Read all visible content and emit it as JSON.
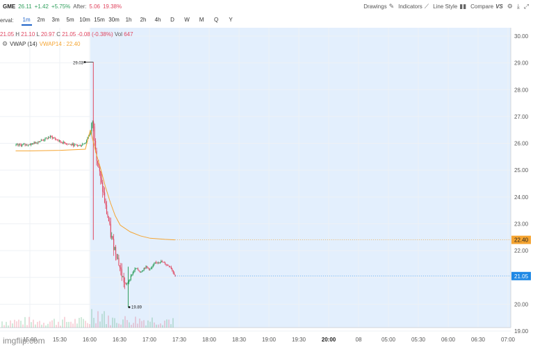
{
  "header": {
    "symbol": "GME",
    "price": "26.11",
    "change": "+1.42",
    "change_pct": "+5.75%",
    "after_label": "After:",
    "after_change": "5.06",
    "after_pct": "19.38%"
  },
  "toolbar": {
    "drawings": "Drawings",
    "indicators": "Indicators",
    "line_style": "Line Style",
    "compare": "Compare",
    "compare_suffix": "VS"
  },
  "interval": {
    "label": "erval:",
    "options": [
      "1m",
      "2m",
      "3m",
      "5m",
      "10m",
      "15m",
      "30m",
      "1h",
      "2h",
      "4h",
      "D",
      "W",
      "M",
      "Q",
      "Y"
    ],
    "active": "1m"
  },
  "ohlc": {
    "o": "21.05",
    "h_label": "H",
    "h": "21.10",
    "l_label": "L",
    "l": "20.97",
    "c_label": "C",
    "c": "21.05",
    "change": "-0.08 (-0.38%)",
    "vol_label": "Vol",
    "vol": "647"
  },
  "indicator": {
    "name": "VWAP (14)",
    "value_label": "VWAP14 : 22.40"
  },
  "watermark": "imgflip.com",
  "colors": {
    "up": "#2e9e5b",
    "down": "#e0455f",
    "vwap": "#f5a431",
    "extended_bg": "#e3effd",
    "last_price": "#1e88e5"
  },
  "chart_data": {
    "type": "candlestick",
    "x_labels": [
      "15:00",
      "15:30",
      "16:00",
      "16:30",
      "17:00",
      "17:30",
      "18:00",
      "18:30",
      "19:00",
      "19:30",
      "20:00",
      "08",
      "05:00",
      "05:30",
      "06:00",
      "06:30",
      "07:00"
    ],
    "y_ticks": [
      "19.00",
      "20.00",
      "21.00",
      "22.00",
      "23.00",
      "24.00",
      "25.00",
      "26.00",
      "27.00",
      "28.00",
      "29.00",
      "30.00"
    ],
    "ylim": [
      19.0,
      30.0
    ],
    "extended_hours_start": "16:00",
    "high_marker": "29.03",
    "low_marker": "19.89",
    "vwap_price_label": "22.40",
    "last_price_label": "21.05",
    "price_series": [
      [
        "14:45",
        25.92
      ],
      [
        "15:00",
        25.97
      ],
      [
        "15:10",
        26.1
      ],
      [
        "15:20",
        26.25
      ],
      [
        "15:30",
        26.05
      ],
      [
        "15:40",
        25.95
      ],
      [
        "15:50",
        25.92
      ],
      [
        "15:55",
        26.05
      ],
      [
        "16:00",
        26.45
      ],
      [
        "16:02",
        26.85
      ],
      [
        "16:04",
        26.2
      ],
      [
        "16:06",
        25.5
      ],
      [
        "16:08",
        25.1
      ],
      [
        "16:10",
        24.6
      ],
      [
        "16:13",
        24.1
      ],
      [
        "16:15",
        23.6
      ],
      [
        "16:18",
        23.1
      ],
      [
        "16:20",
        22.6
      ],
      [
        "16:23",
        22.2
      ],
      [
        "16:26",
        21.9
      ],
      [
        "16:29",
        21.4
      ],
      [
        "16:32",
        21.0
      ],
      [
        "16:35",
        20.7
      ],
      [
        "16:38",
        20.85
      ],
      [
        "16:41",
        21.1
      ],
      [
        "16:45",
        21.35
      ],
      [
        "16:50",
        21.2
      ],
      [
        "16:55",
        21.4
      ],
      [
        "17:00",
        21.3
      ],
      [
        "17:05",
        21.55
      ],
      [
        "17:10",
        21.6
      ],
      [
        "17:15",
        21.5
      ],
      [
        "17:20",
        21.4
      ],
      [
        "17:25",
        21.05
      ]
    ],
    "vwap_series": [
      [
        "14:45",
        25.72
      ],
      [
        "15:00",
        25.72
      ],
      [
        "15:30",
        25.74
      ],
      [
        "15:55",
        25.78
      ],
      [
        "16:00",
        26.5
      ],
      [
        "16:03",
        26.05
      ],
      [
        "16:06",
        25.6
      ],
      [
        "16:10",
        25.1
      ],
      [
        "16:15",
        24.4
      ],
      [
        "16:20",
        23.8
      ],
      [
        "16:25",
        23.3
      ],
      [
        "16:30",
        22.95
      ],
      [
        "16:40",
        22.7
      ],
      [
        "16:50",
        22.55
      ],
      [
        "17:00",
        22.46
      ],
      [
        "17:15",
        22.42
      ],
      [
        "17:25",
        22.4
      ]
    ]
  }
}
